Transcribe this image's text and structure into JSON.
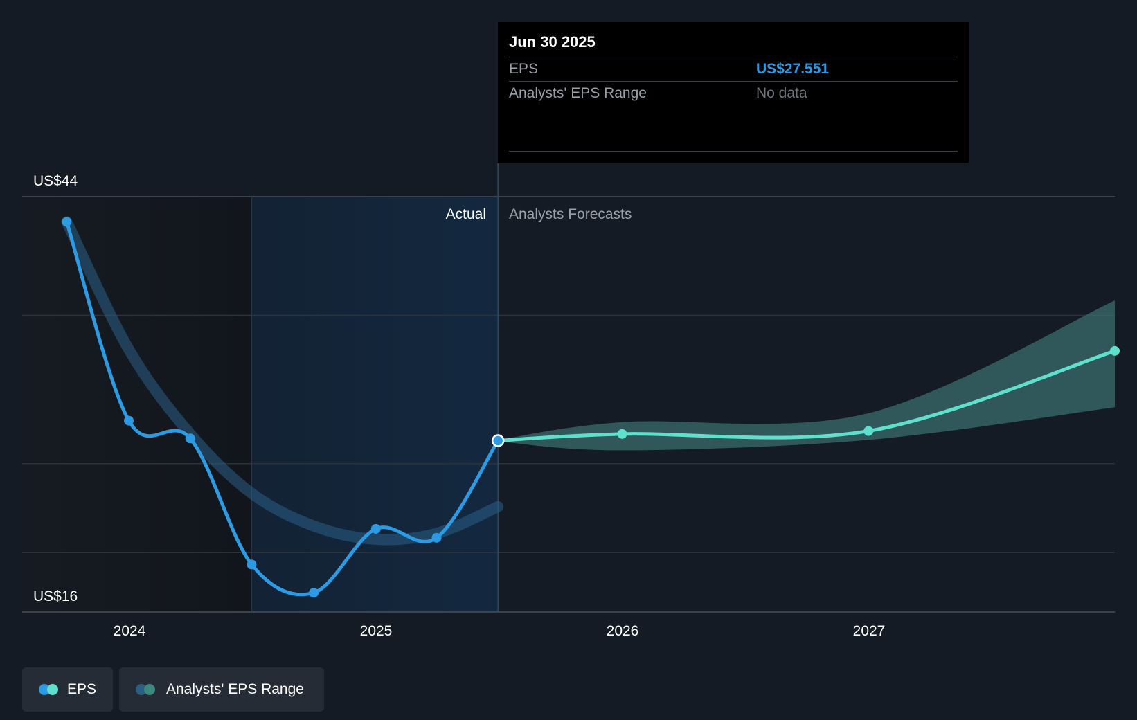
{
  "chart_data": {
    "type": "line",
    "y_axis": {
      "top_label": "US$44",
      "bottom_label": "US$16",
      "ylim": [
        16,
        44
      ]
    },
    "x_ticks": [
      "2024",
      "2025",
      "2026",
      "2027"
    ],
    "region_labels": {
      "actual": "Actual",
      "forecast": "Analysts Forecasts"
    },
    "series": [
      {
        "name": "EPS",
        "kind": "actual",
        "color": "#2d9be3",
        "points": [
          {
            "date": "2023-09-30",
            "value": 42.3
          },
          {
            "date": "2023-12-31",
            "value": 28.9
          },
          {
            "date": "2024-03-31",
            "value": 27.7
          },
          {
            "date": "2024-06-30",
            "value": 19.2
          },
          {
            "date": "2024-09-30",
            "value": 17.3
          },
          {
            "date": "2024-12-31",
            "value": 21.6
          },
          {
            "date": "2025-03-31",
            "value": 21.0
          },
          {
            "date": "2025-06-30",
            "value": 27.551
          }
        ]
      },
      {
        "name": "EPS",
        "kind": "forecast",
        "color": "#5ee0cc",
        "points": [
          {
            "date": "2025-06-30",
            "value": 27.551
          },
          {
            "date": "2025-12-31",
            "value": 28.0
          },
          {
            "date": "2026-12-31",
            "value": 28.2
          },
          {
            "date": "2027-12-31",
            "value": 33.6
          }
        ]
      },
      {
        "name": "Analysts' EPS Range",
        "kind": "trend",
        "color": "#2a5f86",
        "points": [
          {
            "date": "2023-09-30",
            "value": 42.3
          },
          {
            "date": "2023-12-31",
            "value": 33.7
          },
          {
            "date": "2024-03-31",
            "value": 28.0
          },
          {
            "date": "2024-06-30",
            "value": 24.0
          },
          {
            "date": "2024-09-30",
            "value": 21.8
          },
          {
            "date": "2024-12-31",
            "value": 20.9
          },
          {
            "date": "2025-03-31",
            "value": 21.3
          },
          {
            "date": "2025-06-30",
            "value": 23.1
          }
        ]
      },
      {
        "name": "Analysts' EPS Range",
        "kind": "forecast-band",
        "color": "#3a6e6c",
        "points": [
          {
            "date": "2025-06-30",
            "low": 27.5,
            "high": 27.6
          },
          {
            "date": "2025-12-31",
            "low": 26.9,
            "high": 28.8
          },
          {
            "date": "2026-12-31",
            "low": 27.6,
            "high": 29.4
          },
          {
            "date": "2027-12-31",
            "low": 29.8,
            "high": 37.0
          }
        ]
      }
    ],
    "tooltip": {
      "date": "Jun 30 2025",
      "rows": [
        {
          "label": "EPS",
          "value": "US$27.551"
        },
        {
          "label": "Analysts' EPS Range",
          "value": "No data"
        }
      ]
    },
    "legend": [
      {
        "label": "EPS",
        "colors": [
          "#2d9be3",
          "#5ee0cc"
        ]
      },
      {
        "label": "Analysts' EPS Range",
        "colors": [
          "#2a5f86",
          "#3a8a80"
        ]
      }
    ],
    "grid": true
  }
}
